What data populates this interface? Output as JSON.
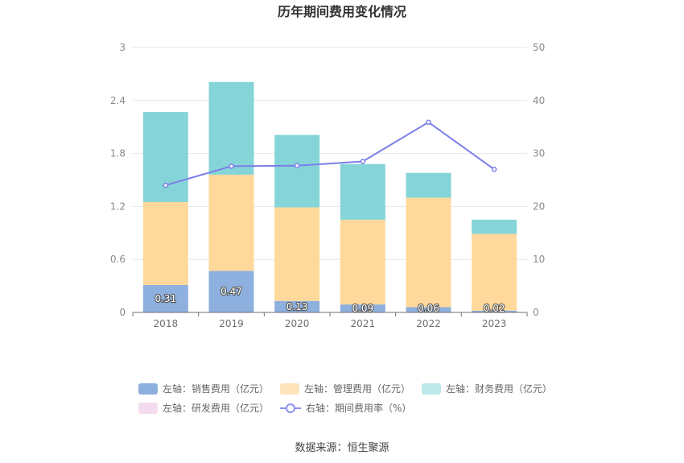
{
  "chart_data": {
    "type": "bar",
    "title": "历年期间费用变化情况",
    "categories": [
      "2018",
      "2019",
      "2020",
      "2021",
      "2022",
      "2023"
    ],
    "stacked": true,
    "y_left": {
      "lim": [
        0,
        3
      ],
      "ticks": [
        "0",
        "0.6",
        "1.2",
        "1.8",
        "2.4",
        "3"
      ]
    },
    "y_right": {
      "lim": [
        0,
        50
      ],
      "ticks": [
        "0",
        "10",
        "20",
        "30",
        "40",
        "50"
      ]
    },
    "grid": true,
    "legend_position": "bottom",
    "series": [
      {
        "name": "左轴：销售费用（亿元）",
        "axis": "left",
        "type": "bar",
        "color": "#8eb0de",
        "values": [
          0.31,
          0.47,
          0.13,
          0.09,
          0.06,
          0.02
        ],
        "labels": [
          "0.31",
          "0.47",
          "0.13",
          "0.09",
          "0.06",
          "0.02"
        ]
      },
      {
        "name": "左轴：管理费用（亿元）",
        "axis": "left",
        "type": "bar",
        "color": "#fed99b",
        "values": [
          0.94,
          1.09,
          1.06,
          0.96,
          1.24,
          0.87
        ]
      },
      {
        "name": "左轴：财务费用（亿元）",
        "axis": "left",
        "type": "bar",
        "color": "#85d5d8",
        "values": [
          1.02,
          1.05,
          0.82,
          0.63,
          0.28,
          0.16
        ]
      },
      {
        "name": "左轴：研发费用（亿元）",
        "axis": "left",
        "type": "bar",
        "color": "#f4d9ec",
        "values": [
          0,
          0,
          0,
          0,
          0,
          0
        ]
      },
      {
        "name": "右轴：期间费用率（%）",
        "axis": "right",
        "type": "line",
        "color": "#7b7fe8",
        "values": [
          24.0,
          27.6,
          27.7,
          28.5,
          35.9,
          27.0
        ]
      }
    ]
  },
  "legend_swatch_colors": [
    "#8eb0de",
    "#fee3bb",
    "#bce8ea",
    "#f4dcee",
    "#8a90ee"
  ],
  "source": "数据来源：恒生聚源"
}
